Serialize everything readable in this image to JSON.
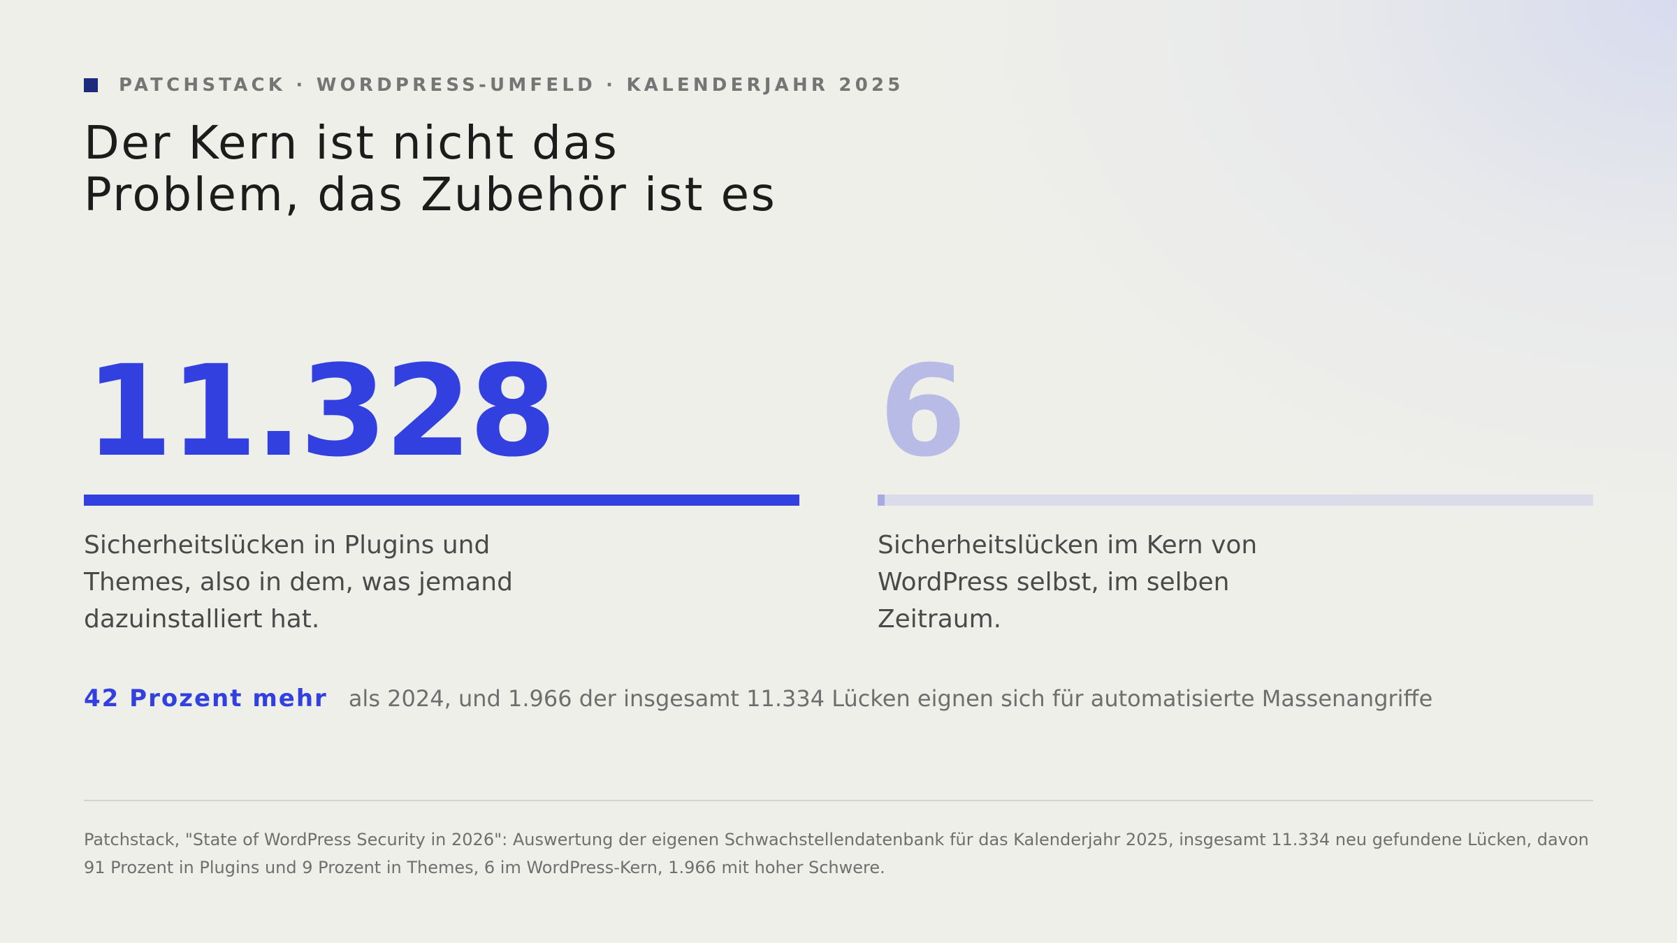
{
  "kicker": "PATCHSTACK · WORDPRESS-UMFELD · KALENDERJAHR 2025",
  "headline": {
    "line1": "Der Kern ist nicht das",
    "line2": "Problem, das Zubehör ist es"
  },
  "stats": {
    "plugins_themes": {
      "value": "11.328",
      "bar_fraction": 1.0,
      "description": "Sicherheitslücken in Plugins und Themes, also in dem, was jemand dazuinstalliert hat."
    },
    "core": {
      "value": "6",
      "bar_fraction": 0.0005,
      "description": "Sicherheitslücken im Kern von WordPress selbst, im selben Zeitraum."
    }
  },
  "highlight": {
    "strong": "42 Prozent mehr",
    "rest": "als 2024, und 1.966 der insgesamt 11.334 Lücken eignen sich für automatisierte Massenangriffe"
  },
  "source": "Patchstack, \"State of WordPress Security in 2026\": Auswertung der eigenen Schwachstellendatenbank für das Kalenderjahr 2025, insgesamt 11.334 neu gefundene Lücken, davon 91 Prozent in Plugins und 9 Prozent in Themes, 6 im WordPress-Kern, 1.966 mit hoher Schwere.",
  "colors": {
    "accent": "#3340e0",
    "accent_muted": "#b8bbe6",
    "kicker_square": "#1e2a7c"
  }
}
